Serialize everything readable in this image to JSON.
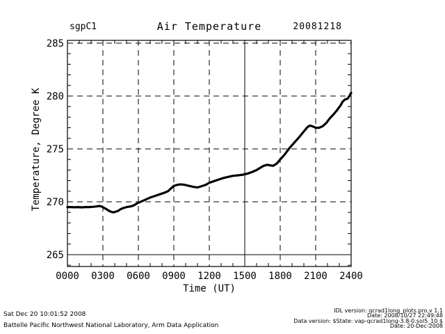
{
  "colors": {
    "foreground": "#000000",
    "background": "#ffffff"
  },
  "header": {
    "site_label": "sgpC1",
    "title": "Air Temperature",
    "date_label": "20081218"
  },
  "chart_data": {
    "type": "line",
    "title": "Air Temperature",
    "xlabel": "Time (UT)",
    "ylabel": "Temperature, Degree K",
    "xlim": [
      0,
      24
    ],
    "ylim": [
      265,
      285
    ],
    "ylim_frame": [
      263.88,
      285.26
    ],
    "x_ticks": [
      {
        "value": 0,
        "label": "0000"
      },
      {
        "value": 3,
        "label": "0300"
      },
      {
        "value": 6,
        "label": "0600"
      },
      {
        "value": 9,
        "label": "0900"
      },
      {
        "value": 12,
        "label": "1200"
      },
      {
        "value": 15,
        "label": "1500"
      },
      {
        "value": 18,
        "label": "1800"
      },
      {
        "value": 21,
        "label": "2100"
      },
      {
        "value": 24,
        "label": "2400"
      }
    ],
    "y_ticks": [
      265,
      270,
      275,
      280,
      285
    ],
    "x_minor_step": 1,
    "y_minor_step": 1,
    "grid": "dashed",
    "solid_vertical_gridline_x": 15,
    "solid_horizontal_gridline_y": 265,
    "legend": "none",
    "series": [
      {
        "name": "air-temperature",
        "color": "#000000",
        "points": [
          [
            0.0,
            269.5
          ],
          [
            0.3,
            269.5
          ],
          [
            0.6,
            269.48
          ],
          [
            0.9,
            269.5
          ],
          [
            1.2,
            269.47
          ],
          [
            1.5,
            269.5
          ],
          [
            1.8,
            269.5
          ],
          [
            2.1,
            269.52
          ],
          [
            2.4,
            269.55
          ],
          [
            2.7,
            269.6
          ],
          [
            2.9,
            269.55
          ],
          [
            3.1,
            269.42
          ],
          [
            3.3,
            269.3
          ],
          [
            3.5,
            269.15
          ],
          [
            3.7,
            269.05
          ],
          [
            3.9,
            269.0
          ],
          [
            4.1,
            269.07
          ],
          [
            4.3,
            269.15
          ],
          [
            4.5,
            269.3
          ],
          [
            4.7,
            269.4
          ],
          [
            5.0,
            269.5
          ],
          [
            5.3,
            269.55
          ],
          [
            5.6,
            269.65
          ],
          [
            5.9,
            269.85
          ],
          [
            6.1,
            269.95
          ],
          [
            6.4,
            270.1
          ],
          [
            6.7,
            270.25
          ],
          [
            7.0,
            270.4
          ],
          [
            7.4,
            270.55
          ],
          [
            7.8,
            270.7
          ],
          [
            8.2,
            270.85
          ],
          [
            8.5,
            271.0
          ],
          [
            8.8,
            271.3
          ],
          [
            9.0,
            271.5
          ],
          [
            9.3,
            271.6
          ],
          [
            9.6,
            271.65
          ],
          [
            9.9,
            271.6
          ],
          [
            10.3,
            271.5
          ],
          [
            10.7,
            271.4
          ],
          [
            11.0,
            271.35
          ],
          [
            11.3,
            271.45
          ],
          [
            11.7,
            271.6
          ],
          [
            12.0,
            271.8
          ],
          [
            12.4,
            271.95
          ],
          [
            12.8,
            272.1
          ],
          [
            13.2,
            272.25
          ],
          [
            13.6,
            272.35
          ],
          [
            14.0,
            272.45
          ],
          [
            14.4,
            272.5
          ],
          [
            14.8,
            272.55
          ],
          [
            15.2,
            272.65
          ],
          [
            15.6,
            272.8
          ],
          [
            16.0,
            273.0
          ],
          [
            16.3,
            273.2
          ],
          [
            16.6,
            273.4
          ],
          [
            16.9,
            273.5
          ],
          [
            17.1,
            273.45
          ],
          [
            17.4,
            273.4
          ],
          [
            17.7,
            273.6
          ],
          [
            18.0,
            274.0
          ],
          [
            18.4,
            274.5
          ],
          [
            18.8,
            275.1
          ],
          [
            19.2,
            275.6
          ],
          [
            19.6,
            276.1
          ],
          [
            20.0,
            276.65
          ],
          [
            20.3,
            277.05
          ],
          [
            20.5,
            277.2
          ],
          [
            20.7,
            277.15
          ],
          [
            21.0,
            277.0
          ],
          [
            21.3,
            277.0
          ],
          [
            21.6,
            277.15
          ],
          [
            21.9,
            277.45
          ],
          [
            22.2,
            277.9
          ],
          [
            22.5,
            278.25
          ],
          [
            22.8,
            278.65
          ],
          [
            23.1,
            279.1
          ],
          [
            23.3,
            279.5
          ],
          [
            23.5,
            279.68
          ],
          [
            23.7,
            279.75
          ],
          [
            23.85,
            280.0
          ],
          [
            24.0,
            280.3
          ]
        ]
      }
    ]
  },
  "footer": {
    "left_line1": "Sat Dec 20 10:01:52 2008",
    "left_line2": "Battelle Pacific Northwest National Laboratory, Arm Data Application",
    "right_line1": "IDL version: qcrad1long_plots.pro,v 1.1",
    "right_line2": "Date: 2008/10/27 22:49:48",
    "right_line3": "Data version: $State: vap-qcrad1long-3.8-0.sol5_10 $",
    "right_line4": "Date: 20-Dec-2008"
  }
}
